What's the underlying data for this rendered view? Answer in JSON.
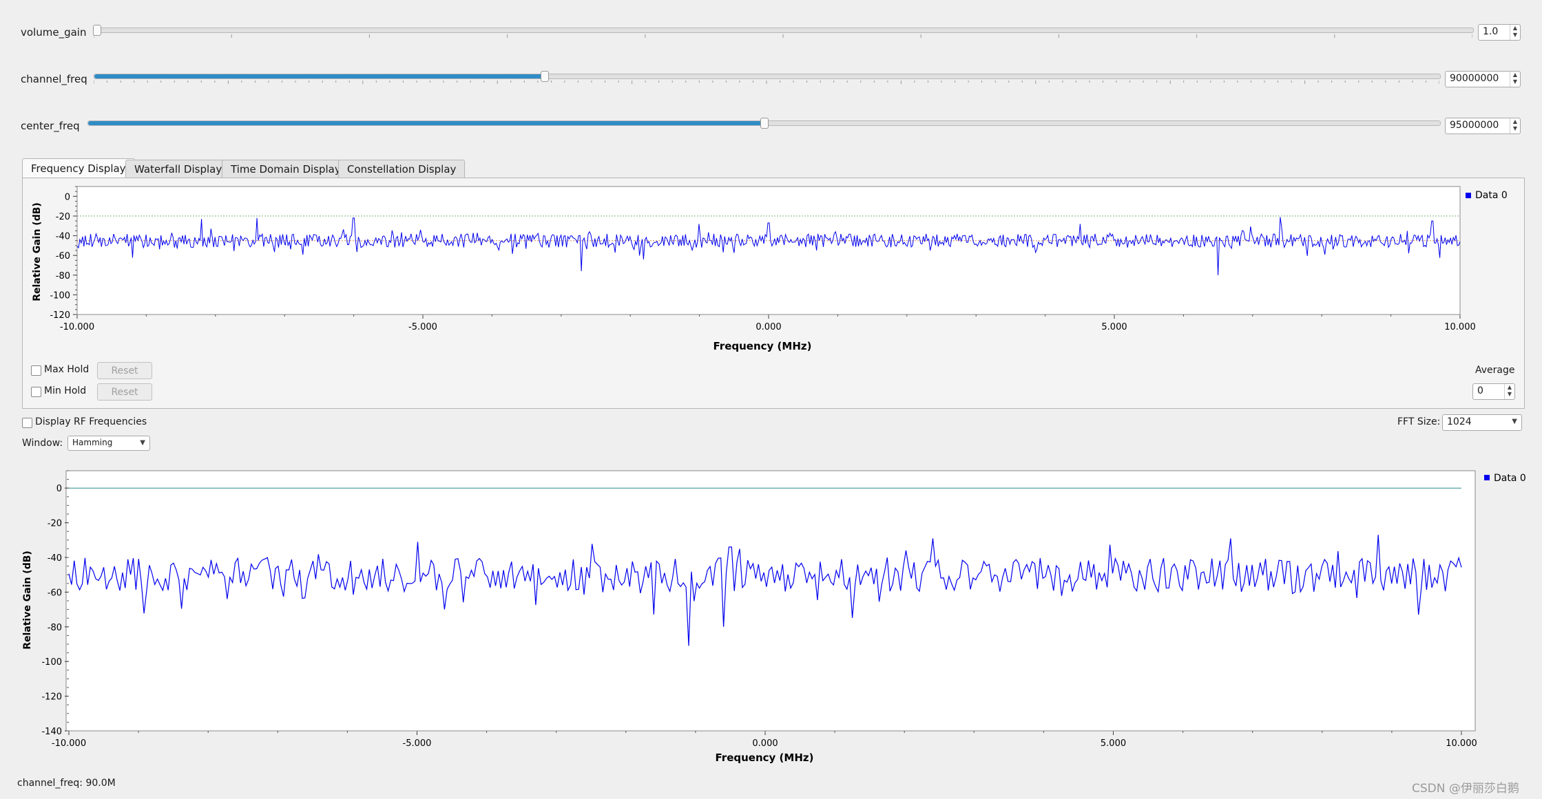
{
  "sliders": [
    {
      "label": "volume_gain",
      "value": "1.0",
      "fill": 0.0
    },
    {
      "label": "channel_freq",
      "value": "90000000",
      "fill": 0.333
    },
    {
      "label": "center_freq",
      "value": "95000000",
      "fill": 0.5
    }
  ],
  "tabs": [
    "Frequency Display",
    "Waterfall Display",
    "Time Domain Display",
    "Constellation Display"
  ],
  "controls": {
    "max_hold": "Max Hold",
    "min_hold": "Min Hold",
    "reset": "Reset",
    "average_label": "Average",
    "average_value": "0",
    "display_rf": "Display RF Frequencies",
    "fft_size_label": "FFT Size:",
    "fft_size_value": "1024",
    "window_label": "Window:",
    "window_value": "Hamming"
  },
  "status": "channel_freq: 90.0M",
  "watermark": "CSDN @伊丽莎白鹅",
  "colors": {
    "trace": "#0000ee",
    "accent": "#308cc6",
    "avg_line": "#7ab37a",
    "noise_line": "#d08a5a"
  },
  "chart_data": [
    {
      "type": "line",
      "xlabel": "Frequency (MHz)",
      "ylabel": "Relative Gain (dB)",
      "xlim": [
        -10,
        10
      ],
      "ylim": [
        -120,
        10
      ],
      "xticks": [
        "-10.000",
        "-5.000",
        "0.000",
        "5.000",
        "10.000"
      ],
      "yticks": [
        "0",
        "-20",
        "-40",
        "-60",
        "-80",
        "-100",
        "-120"
      ],
      "legend": "Data 0",
      "ref_lines": [
        -20,
        -45
      ],
      "series": [
        {
          "name": "Data 0",
          "peaks": [
            {
              "x": -8.2,
              "y": -23
            },
            {
              "x": -7.4,
              "y": -22
            },
            {
              "x": -6.0,
              "y": -22
            },
            {
              "x": -2.7,
              "y": -76
            },
            {
              "x": -1.0,
              "y": -28
            },
            {
              "x": 0.0,
              "y": -27
            },
            {
              "x": 4.5,
              "y": -28
            },
            {
              "x": 6.5,
              "y": -80
            },
            {
              "x": 7.4,
              "y": -21
            },
            {
              "x": 9.6,
              "y": -25
            }
          ],
          "baseline": -45
        }
      ]
    },
    {
      "type": "line",
      "xlabel": "Frequency (MHz)",
      "ylabel": "Relative Gain (dB)",
      "xlim": [
        -10,
        10
      ],
      "ylim": [
        -140,
        10
      ],
      "xticks": [
        "-10.000",
        "-5.000",
        "0.000",
        "5.000",
        "10.000"
      ],
      "yticks": [
        "0",
        "-20",
        "-40",
        "-60",
        "-80",
        "-100",
        "-120",
        "-140"
      ],
      "legend": "Data 0",
      "ref_lines": [
        0
      ],
      "series": [
        {
          "name": "Data 0",
          "peaks": [
            {
              "x": -5.0,
              "y": -31
            },
            {
              "x": -4.6,
              "y": -70
            },
            {
              "x": -1.1,
              "y": -91
            },
            {
              "x": -0.6,
              "y": -80
            },
            {
              "x": -0.5,
              "y": -34
            },
            {
              "x": 2.4,
              "y": -29
            },
            {
              "x": 6.7,
              "y": -29
            },
            {
              "x": 8.8,
              "y": -27
            }
          ],
          "baseline": -50
        }
      ]
    }
  ]
}
